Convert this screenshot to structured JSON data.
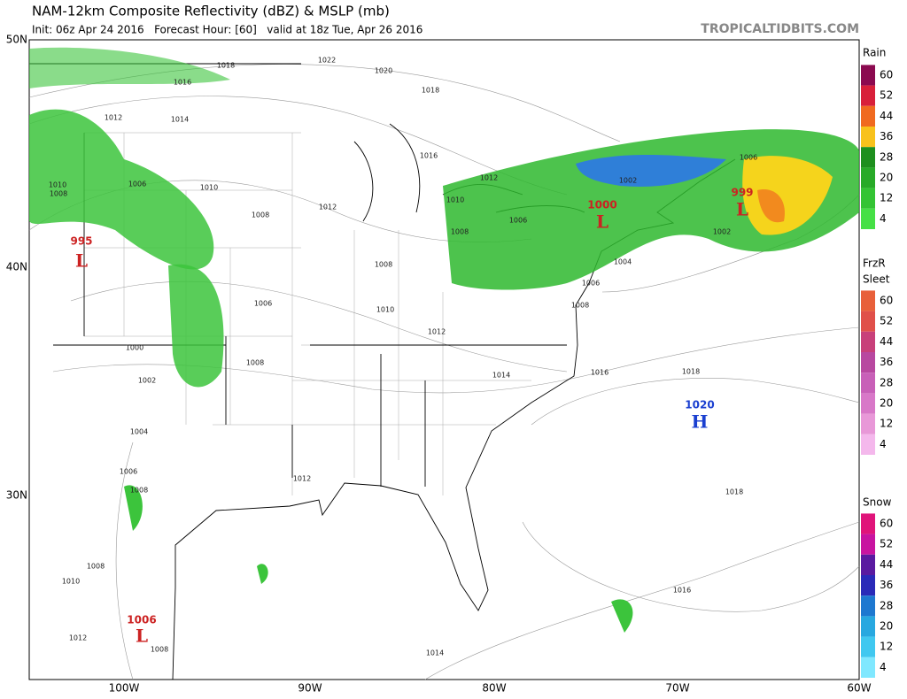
{
  "header": {
    "title": "NAM-12km Composite Reflectivity (dBZ) & MSLP (mb)",
    "subtitle": "Init: 06z Apr 24 2016   Forecast Hour: [60]   valid at 18z Tue, Apr 26 2016",
    "site": "TROPICALTIDBITS.COM"
  },
  "map": {
    "lat_labels": [
      "50N",
      "40N",
      "30N"
    ],
    "lon_labels": [
      "100W",
      "90W",
      "80W",
      "70W",
      "60W"
    ],
    "pressure_centers": [
      {
        "value": "995",
        "symbol": "L"
      },
      {
        "value": "1000",
        "symbol": "L"
      },
      {
        "value": "999",
        "symbol": "L"
      },
      {
        "value": "1020",
        "symbol": "H"
      },
      {
        "value": "1006",
        "symbol": "L"
      }
    ],
    "isobar_labels": [
      "1022",
      "1020",
      "1018",
      "1018",
      "1016",
      "1014",
      "1012",
      "1010",
      "1008",
      "1006",
      "1010",
      "1008",
      "1012",
      "1016",
      "1012",
      "1010",
      "1008",
      "1006",
      "1008",
      "1010",
      "1012",
      "1006",
      "1008",
      "1000",
      "1002",
      "1004",
      "1006",
      "1008",
      "1014",
      "1016",
      "1018",
      "1018",
      "1016",
      "1014",
      "1012",
      "1008",
      "1010",
      "1008",
      "1002",
      "1004",
      "1006",
      "1008",
      "1002",
      "1006",
      "1012"
    ]
  },
  "legend": {
    "rain": {
      "title": "Rain",
      "ticks": [
        60,
        52,
        44,
        36,
        28,
        20,
        12,
        4
      ]
    },
    "freezing_rain_title": "FrzR",
    "sleet": {
      "title": "Sleet",
      "ticks": [
        60,
        52,
        44,
        36,
        28,
        20,
        12,
        4
      ]
    },
    "snow": {
      "title": "Snow",
      "ticks": [
        60,
        52,
        44,
        36,
        28,
        20,
        12,
        4
      ]
    }
  }
}
